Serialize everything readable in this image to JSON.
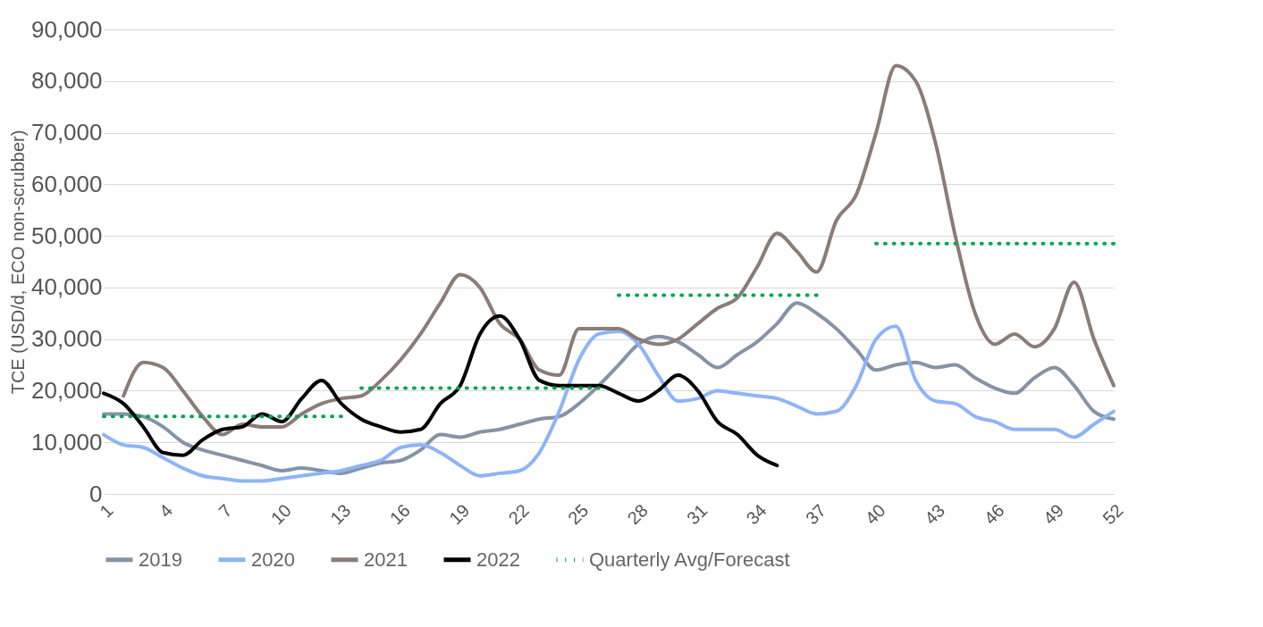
{
  "chart_data": {
    "type": "line",
    "ylabel": "TCE (USD/d, ECO non-scrubber)",
    "x": [
      1,
      2,
      3,
      4,
      5,
      6,
      7,
      8,
      9,
      10,
      11,
      12,
      13,
      14,
      15,
      16,
      17,
      18,
      19,
      20,
      21,
      22,
      23,
      24,
      25,
      26,
      27,
      28,
      29,
      30,
      31,
      32,
      33,
      34,
      35,
      36,
      37,
      38,
      39,
      40,
      41,
      42,
      43,
      44,
      45,
      46,
      47,
      48,
      49,
      50,
      51,
      52
    ],
    "xlim": [
      1,
      52
    ],
    "xticks": [
      1,
      4,
      7,
      10,
      13,
      16,
      19,
      22,
      25,
      28,
      31,
      34,
      37,
      40,
      43,
      46,
      49,
      52
    ],
    "ylim": [
      0,
      90000
    ],
    "yticks": [
      0,
      {
        "value": 10000,
        "label": "10,000"
      },
      {
        "value": 20000,
        "label": "20,000"
      },
      {
        "value": 30000,
        "label": "30,000"
      },
      {
        "value": 40000,
        "label": "40,000"
      },
      {
        "value": 50000,
        "label": "50,000"
      },
      {
        "value": 60000,
        "label": "60,000"
      },
      {
        "value": 70000,
        "label": "70,000"
      },
      {
        "value": 80000,
        "label": "80,000"
      },
      {
        "value": 90000,
        "label": "90,000"
      }
    ],
    "grid": "y",
    "legend": "bottom",
    "line_style": "solid",
    "series": [
      {
        "name": "2019",
        "color": "#8593a5",
        "values": [
          15500,
          15500,
          15000,
          13000,
          10000,
          8500,
          7500,
          6500,
          5500,
          4500,
          5000,
          4500,
          4000,
          5000,
          6000,
          6500,
          8500,
          11500,
          11000,
          12000,
          12500,
          13500,
          14500,
          15000,
          17500,
          21000,
          25000,
          29000,
          30500,
          29500,
          27000,
          24500,
          27000,
          29500,
          33000,
          37000,
          35000,
          32000,
          28000,
          24000,
          25000,
          25500,
          24500,
          25000,
          22500,
          20500,
          19500,
          22500,
          24500,
          21000,
          16000,
          14500
        ]
      },
      {
        "name": "2020",
        "color": "#8eb4f7",
        "values": [
          11500,
          9500,
          9000,
          7000,
          5000,
          3500,
          3000,
          2500,
          2500,
          3000,
          3500,
          4000,
          4500,
          5500,
          6500,
          9000,
          9500,
          8000,
          5500,
          3500,
          4000,
          4500,
          8000,
          16000,
          26000,
          31000,
          31500,
          29000,
          23000,
          18000,
          18500,
          20000,
          19500,
          19000,
          18500,
          17000,
          15500,
          16000,
          21000,
          30000,
          32500,
          22000,
          18000,
          17500,
          15000,
          14000,
          12500,
          12500,
          12500,
          11000,
          13500,
          16000
        ]
      },
      {
        "name": "2021",
        "color": "#8b7c77",
        "values": [
          null,
          19000,
          25500,
          24500,
          20000,
          15000,
          11500,
          13500,
          13000,
          13000,
          15500,
          17500,
          18500,
          19000,
          22000,
          26000,
          31000,
          37000,
          42500,
          40000,
          33000,
          30000,
          24000,
          23000,
          32000,
          32000,
          32000,
          30000,
          29000,
          30000,
          33000,
          36000,
          38000,
          44000,
          50500,
          47000,
          43000,
          53000,
          58000,
          70000,
          83000,
          80000,
          68000,
          50000,
          35000,
          29000,
          31000,
          28500,
          32000,
          41000,
          30000,
          21000
        ]
      },
      {
        "name": "2022",
        "color": "#000000",
        "values": [
          19500,
          17500,
          13000,
          8000,
          7500,
          10500,
          12500,
          13000,
          15500,
          14000,
          18500,
          22000,
          17500,
          14500,
          13000,
          12000,
          12500,
          17500,
          21000,
          31000,
          34500,
          30000,
          22000,
          21000,
          21000,
          21000,
          19500,
          18000,
          20000,
          23000,
          20000,
          14000,
          11500,
          7500,
          5500,
          null,
          null,
          null,
          null,
          null,
          null,
          null,
          null,
          null,
          null,
          null,
          null,
          null,
          null,
          null,
          null,
          null
        ]
      },
      {
        "name": "Quarterly Avg/Forecast",
        "color": "#00a651",
        "line_style": "dotted",
        "x": [
          1,
          13
        ],
        "values": [
          15000,
          15000
        ]
      },
      {
        "color": "#00a651",
        "line_style": "dotted",
        "x": [
          14,
          26
        ],
        "values": [
          20500,
          20500
        ]
      },
      {
        "color": "#00a651",
        "line_style": "dotted",
        "x": [
          27,
          37
        ],
        "values": [
          38500,
          38500
        ]
      },
      {
        "color": "#00a651",
        "line_style": "dotted",
        "x": [
          40,
          52
        ],
        "values": [
          48500,
          48500
        ]
      }
    ]
  }
}
